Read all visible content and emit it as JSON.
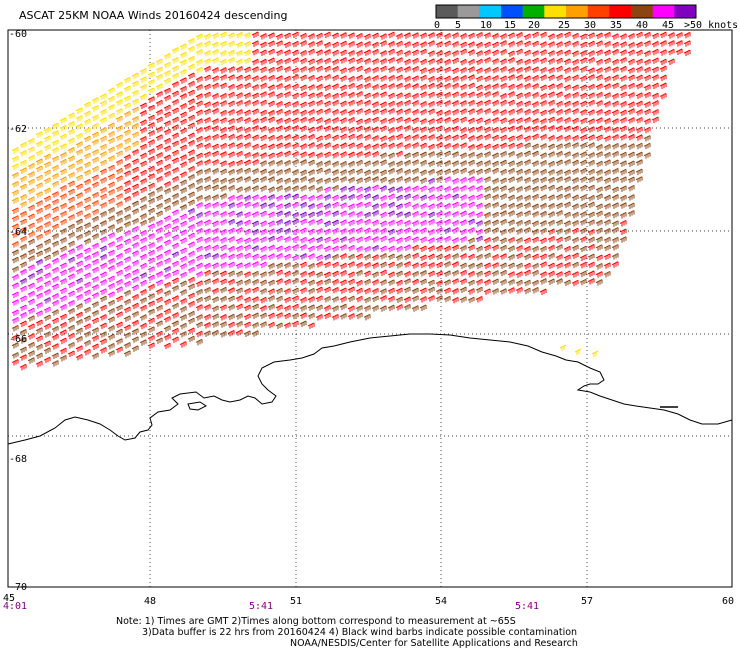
{
  "title": "ASCAT 25KM NOAA Winds 20160424 descending",
  "scale": {
    "labels": [
      "0",
      "5",
      "10",
      "15",
      "20",
      "25",
      "30",
      "35",
      "40",
      "45",
      ">50 knots"
    ],
    "colors": [
      "#5a5a5a",
      "#9a9a9a",
      "#00c8ff",
      "#0050ff",
      "#00b000",
      "#ffe000",
      "#ffa000",
      "#ff4000",
      "#ff0000",
      "#8b4513",
      "#ff00ff",
      "#8000c0"
    ]
  },
  "lat_labels": [
    "-60",
    "-62",
    "-64",
    "-66",
    "-68",
    "-70"
  ],
  "lon_labels": [
    "45",
    "48",
    "51",
    "54",
    "57",
    "60"
  ],
  "times": [
    "4:01",
    "5:41",
    "5:41"
  ],
  "notes": [
    "Note: 1) Times are GMT 2)Times along bottom correspond to measurement at ~65S",
    "3)Data buffer is 22 hrs from 20160424 4) Black wind barbs indicate possible contamination",
    "NOAA/NESDIS/Center for Satellite Applications and Research"
  ]
}
